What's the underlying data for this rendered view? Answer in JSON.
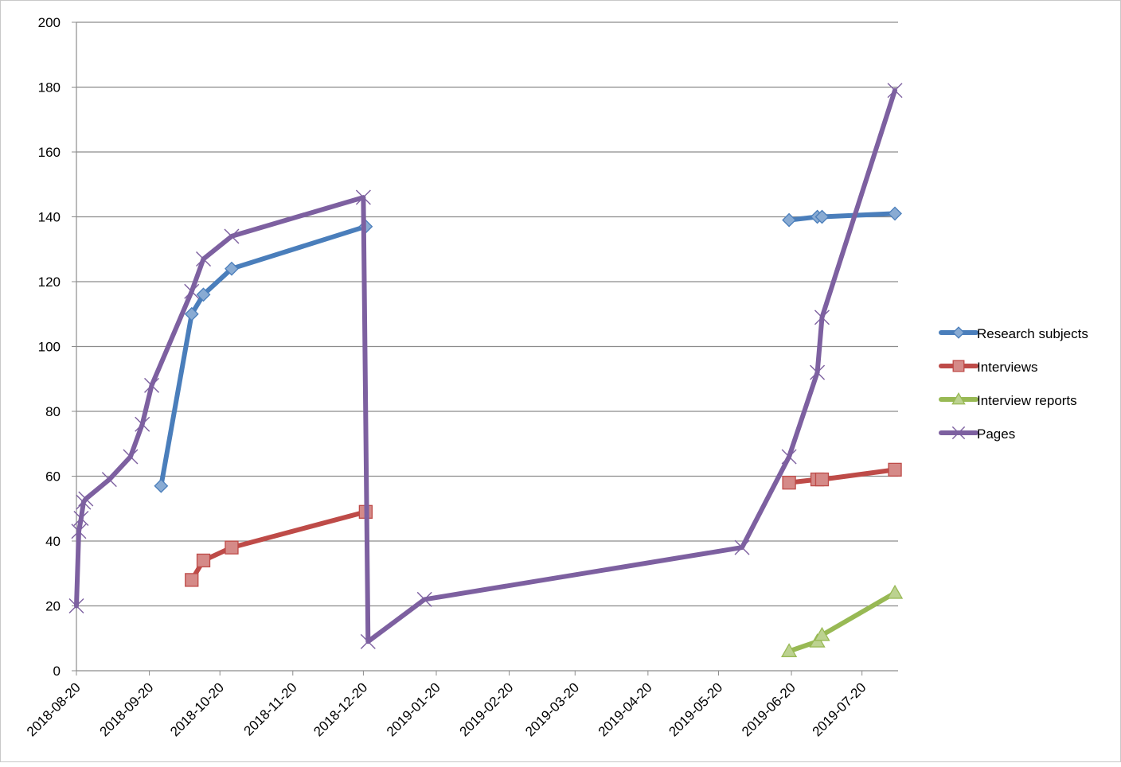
{
  "chart_data": {
    "type": "line",
    "title": "",
    "xlabel": "",
    "ylabel": "",
    "ylim": [
      0,
      200
    ],
    "yticks": [
      0,
      20,
      40,
      60,
      80,
      100,
      120,
      140,
      160,
      180,
      200
    ],
    "xlim": [
      "2018-08-20",
      "2019-08-04"
    ],
    "xtick_labels": [
      "2018-08-20",
      "2018-09-20",
      "2018-10-20",
      "2018-11-20",
      "2018-12-20",
      "2019-01-20",
      "2019-02-20",
      "2019-03-20",
      "2019-04-20",
      "2019-05-20",
      "2019-06-20",
      "2019-07-20"
    ],
    "grid": "horizontal",
    "legend_position": "right",
    "series": [
      {
        "name": "Research subjects",
        "color": "#4a7ebb",
        "marker": "diamond",
        "points": [
          [
            "2018-09-25",
            57
          ],
          [
            "2018-10-08",
            110
          ],
          [
            "2018-10-13",
            116
          ],
          [
            "2018-10-25",
            124
          ],
          [
            "2018-12-21",
            137
          ],
          [
            null,
            null
          ],
          [
            "2019-06-19",
            139
          ],
          [
            "2019-07-01",
            140
          ],
          [
            "2019-07-03",
            140
          ],
          [
            "2019-08-03",
            141
          ]
        ]
      },
      {
        "name": "Interviews",
        "color": "#be4b48",
        "marker": "square",
        "points": [
          [
            "2018-10-08",
            28
          ],
          [
            "2018-10-13",
            34
          ],
          [
            "2018-10-25",
            38
          ],
          [
            "2018-12-21",
            49
          ],
          [
            null,
            null
          ],
          [
            "2019-06-19",
            58
          ],
          [
            "2019-07-01",
            59
          ],
          [
            "2019-07-03",
            59
          ],
          [
            "2019-08-03",
            62
          ]
        ]
      },
      {
        "name": "Interview reports",
        "color": "#98b954",
        "marker": "triangle",
        "points": [
          [
            "2019-06-19",
            6
          ],
          [
            "2019-07-01",
            9
          ],
          [
            "2019-07-03",
            11
          ],
          [
            "2019-08-03",
            24
          ]
        ]
      },
      {
        "name": "Pages",
        "color": "#7d60a0",
        "marker": "x",
        "points": [
          [
            "2018-08-20",
            20
          ],
          [
            "2018-08-21",
            43
          ],
          [
            "2018-08-22",
            47
          ],
          [
            "2018-08-23",
            52
          ],
          [
            "2018-08-24",
            53
          ],
          [
            "2018-09-03",
            59
          ],
          [
            "2018-09-12",
            66
          ],
          [
            "2018-09-17",
            76
          ],
          [
            "2018-09-21",
            88
          ],
          [
            "2018-10-08",
            117
          ],
          [
            "2018-10-13",
            127
          ],
          [
            "2018-10-25",
            134
          ],
          [
            "2018-12-20",
            146
          ],
          [
            "2018-12-22",
            9
          ],
          [
            "2019-01-15",
            22
          ],
          [
            "2019-05-30",
            38
          ],
          [
            "2019-06-19",
            66
          ],
          [
            "2019-07-01",
            92
          ],
          [
            "2019-07-03",
            109
          ],
          [
            "2019-08-03",
            179
          ]
        ]
      }
    ]
  }
}
